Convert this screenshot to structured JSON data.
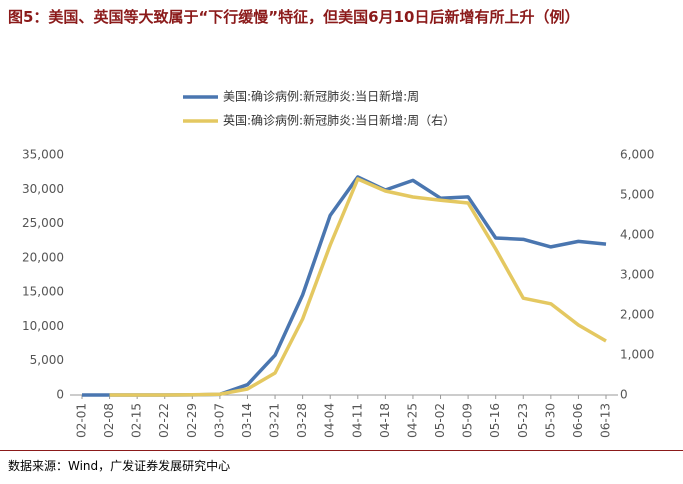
{
  "chart_data": {
    "type": "line",
    "title": "图5：美国、英国等大致属于“下行缓慢”特征，但美国6月10日后新增有所上升（例）",
    "source": "数据来源：Wind，广发证券发展研究中心",
    "categories": [
      "02-01",
      "02-08",
      "02-15",
      "02-22",
      "02-29",
      "03-07",
      "03-14",
      "03-21",
      "03-28",
      "04-04",
      "04-11",
      "04-18",
      "04-25",
      "05-02",
      "05-09",
      "05-16",
      "05-23",
      "05-30",
      "06-06",
      "06-13"
    ],
    "series": [
      {
        "name": "美国:确诊病例:新冠肺炎:当日新增:周",
        "color": "#4a76b0",
        "values": [
          0,
          0,
          0,
          0,
          10,
          100,
          1500,
          5800,
          14600,
          26200,
          31800,
          29900,
          31300,
          28700,
          28900,
          22900,
          22700,
          21600,
          22400,
          22000
        ]
      },
      {
        "name": "英国:确诊病例:新冠肺炎:当日新增:周（右）",
        "color": "#e4c861",
        "axis": "y2",
        "values": [
          null,
          0,
          0,
          0,
          5,
          20,
          150,
          550,
          1900,
          3750,
          5400,
          5100,
          4950,
          4870,
          4800,
          3650,
          2420,
          2280,
          1750,
          1350
        ]
      }
    ],
    "ylim": [
      0,
      35000
    ],
    "yticks": [
      0,
      {
        "value": 5000,
        "label": "5,000"
      },
      {
        "value": 10000,
        "label": "10,000"
      },
      {
        "value": 15000,
        "label": "15,000"
      },
      {
        "value": 20000,
        "label": "20,000"
      },
      {
        "value": 25000,
        "label": "25,000"
      },
      {
        "value": 30000,
        "label": "30,000"
      },
      {
        "value": 35000,
        "label": "35,000"
      }
    ],
    "y2lim": [
      0,
      6000
    ],
    "y2ticks": [
      0,
      {
        "value": 1000,
        "label": "1,000"
      },
      {
        "value": 2000,
        "label": "2,000"
      },
      {
        "value": 3000,
        "label": "3,000"
      },
      {
        "value": 4000,
        "label": "4,000"
      },
      {
        "value": 5000,
        "label": "5,000"
      },
      {
        "value": 6000,
        "label": "6,000"
      }
    ],
    "legend": "top"
  }
}
